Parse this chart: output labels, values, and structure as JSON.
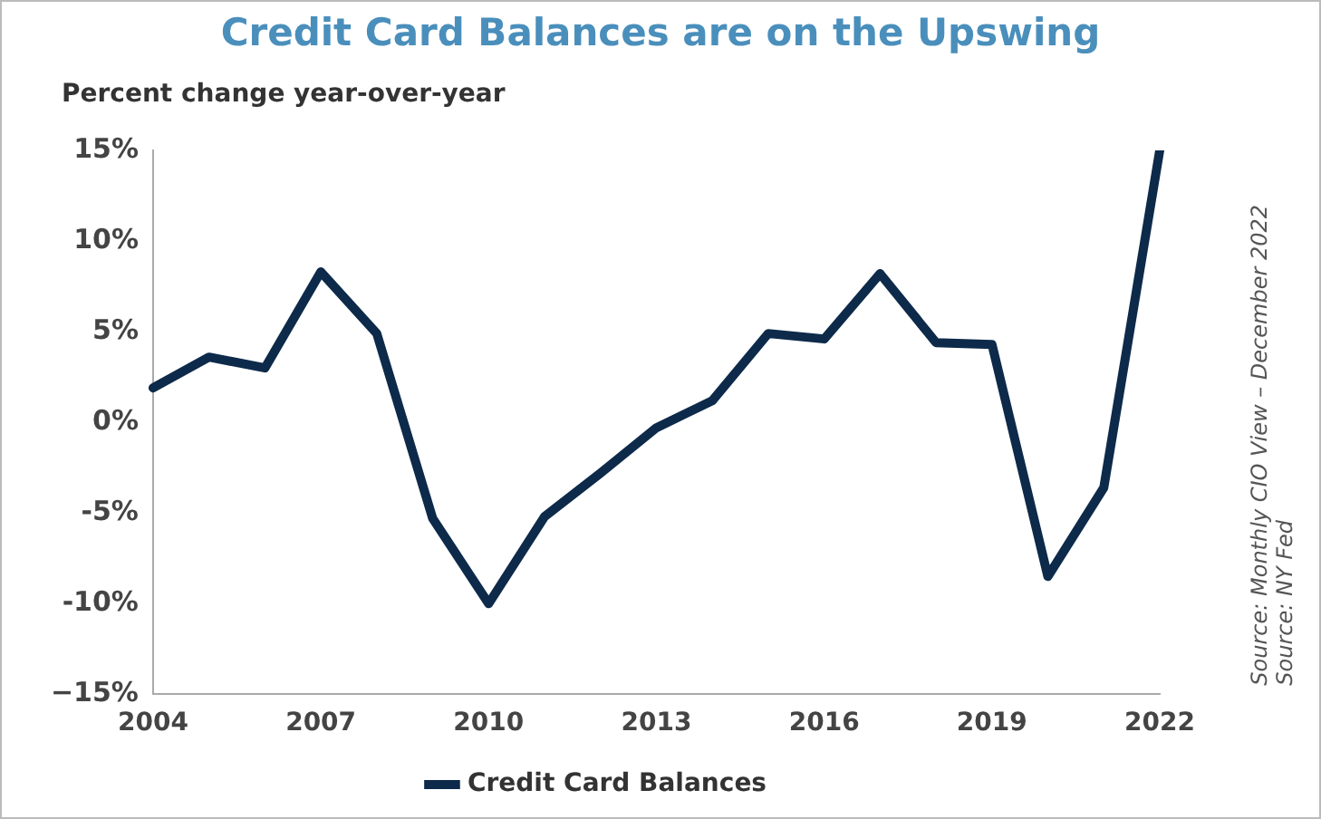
{
  "chart_data": {
    "type": "line",
    "title": "Credit Card Balances are on the Upswing",
    "ylabel": "Percent change year-over-year",
    "categories": [
      "2004",
      null,
      null,
      "2007",
      null,
      null,
      "2010",
      null,
      null,
      "2013",
      null,
      null,
      "2016",
      null,
      null,
      "2019",
      null,
      null,
      "2022"
    ],
    "series": [
      {
        "name": "Credit Card Balances",
        "color": "#0d2a4a",
        "values": [
          1.9,
          3.6,
          3.0,
          8.3,
          4.9,
          -5.3,
          -10.0,
          -5.2,
          -2.8,
          -0.3,
          1.2,
          4.9,
          4.6,
          8.2,
          4.4,
          4.3,
          -8.5,
          -3.6,
          15.0
        ]
      }
    ],
    "ylim": [
      -15,
      15
    ],
    "yticks": [
      {
        "value": -15,
        "label": "−15%"
      },
      {
        "value": -10,
        "label": "-10%"
      },
      {
        "value": -5,
        "label": "-5%"
      },
      {
        "value": 0,
        "label": "0%"
      },
      {
        "value": 5,
        "label": "5%"
      },
      {
        "value": 10,
        "label": "10%"
      },
      {
        "value": 15,
        "label": "15%"
      }
    ],
    "grid": false,
    "legend": "bottom",
    "marker": "none",
    "line_style": "solid",
    "annotations": [
      "Source:  NY Fed",
      "Source:  Monthly CIO View – December 2022"
    ]
  }
}
